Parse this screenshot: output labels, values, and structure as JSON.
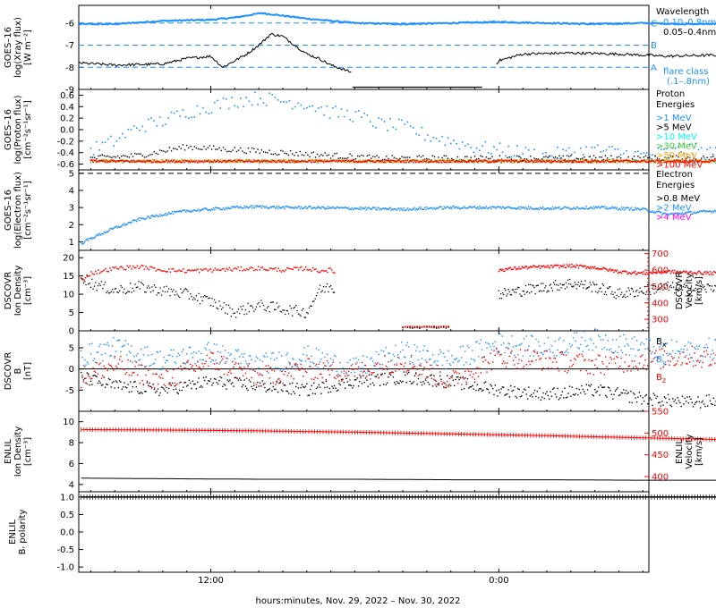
{
  "x_axis": {
    "range_hours": [
      6.5,
      30.25
    ],
    "ticks": [
      {
        "hour": 12,
        "label": "12:00"
      },
      {
        "hour": 24,
        "label": "0:00"
      },
      {
        "hour": 36,
        "label": "12:00"
      }
    ],
    "title": "hours:minutes, Nov. 29, 2022 – Nov. 30, 2022"
  },
  "colors": {
    "xray_long": "#1e90ff",
    "xray_short": "#000000",
    "proton_1": "#1e90ff",
    "proton_5": "#000000",
    "proton_10": "#00ffff",
    "proton_30": "#32cd32",
    "proton_50": "#ffa500",
    "proton_100": "#ff0000",
    "electron_08": "#000000",
    "electron_2": "#1e90ff",
    "electron_4": "#ff00ff",
    "density": "#000000",
    "velocity": "#ff0000",
    "bx": "#000000",
    "by": "#1e90ff",
    "bz": "#ff0000"
  },
  "panels": [
    {
      "id": "xray",
      "ylabel": [
        "GOES–16",
        "log(Xray flux)",
        "[W m⁻²]"
      ],
      "ylim": [
        -9,
        -5.2
      ],
      "yticks": [
        -9,
        -8,
        -7,
        -6
      ],
      "legend_title": "Wavelength",
      "legend": [
        {
          "text": "0.10–0.8nm",
          "color": "#1e90ff"
        },
        {
          "text": "0.05–0.4nm",
          "color": "#000000"
        }
      ],
      "flare_levels": [
        {
          "value": -6,
          "label": "C"
        },
        {
          "value": -7,
          "label": "B"
        },
        {
          "value": -8,
          "label": "A"
        }
      ],
      "flare_caption": [
        "flare class",
        "(.1–.8nm)"
      ]
    },
    {
      "id": "proton",
      "ylabel": [
        "GOES–16",
        "log(Proton flux)",
        "[cm⁻²s⁻¹sr⁻¹]"
      ],
      "ylim": [
        -0.7,
        0.7
      ],
      "yticks": [
        -0.6,
        -0.4,
        -0.2,
        0.0,
        0.2,
        0.4,
        0.6
      ],
      "ytick_labels": [
        "-0.6",
        "-0.4",
        "-0.2",
        "0.0",
        "0.2",
        "0.4",
        "0.6"
      ],
      "legend_title": [
        "Proton",
        "Energies"
      ],
      "legend": [
        {
          "text": ">1 MeV",
          "color": "#1e90ff"
        },
        {
          "text": ">5 MeV",
          "color": "#000000"
        },
        {
          "text": ">10 MeV",
          "color": "#00ffff"
        },
        {
          "text": ">30 MeV",
          "color": "#32cd32"
        },
        {
          "text": ">50 MeV",
          "color": "#ffa500"
        },
        {
          "text": ">100 MeV",
          "color": "#ff0000"
        }
      ]
    },
    {
      "id": "electron",
      "ylabel": [
        "GOES–16",
        "log(Electron flux)",
        "[cm⁻²s⁻¹sr⁻¹]"
      ],
      "ylim": [
        0.5,
        5.2
      ],
      "yticks": [
        1,
        2,
        3,
        4,
        5
      ],
      "threshold": 5,
      "legend_title": [
        "Electron",
        "Energies"
      ],
      "legend": [
        {
          "text": ">0.8 MeV",
          "color": "#000000"
        },
        {
          "text": ">2 MeV",
          "color": "#1e90ff"
        },
        {
          "text": ">4 MeV",
          "color": "#ff00ff"
        }
      ]
    },
    {
      "id": "dscovr_plasma",
      "ylabel": [
        "DSCOVR",
        "Ion Density",
        "[cm⁻³]"
      ],
      "ylim": [
        0,
        22
      ],
      "yticks": [
        0,
        5,
        10,
        15,
        20
      ],
      "right_label": [
        "DSCOVR",
        "Velocity",
        "[km/s]"
      ],
      "right_ylim": [
        230,
        720
      ],
      "right_yticks": [
        300,
        400,
        500,
        600,
        700
      ]
    },
    {
      "id": "dscovr_mag",
      "ylabel": [
        "DSCOVR",
        "B",
        "[nT]"
      ],
      "ylim": [
        -10,
        9
      ],
      "yticks": [
        -5,
        0,
        5
      ],
      "zero_line": 0,
      "legend": [
        {
          "base": "B",
          "sub": "x",
          "color": "#000000"
        },
        {
          "base": "B",
          "sub": "y",
          "color": "#1e90ff"
        },
        {
          "base": "B",
          "sub": "z",
          "color": "#ff0000"
        }
      ]
    },
    {
      "id": "enlil_plasma",
      "ylabel": [
        "ENLIL",
        "Ion Density",
        "[cm⁻³]"
      ],
      "ylim": [
        3.3,
        11
      ],
      "yticks": [
        4,
        6,
        8,
        10
      ],
      "right_label": [
        "ENLIL",
        "Velocity",
        "[km/s]"
      ],
      "right_ylim": [
        365,
        550
      ],
      "right_yticks": [
        400,
        450,
        500,
        550
      ]
    },
    {
      "id": "enlil_polarity",
      "ylabel": [
        "ENLIL",
        "Bᵣ polarity"
      ],
      "ylim": [
        -1.15,
        1.15
      ],
      "yticks": [
        -1.0,
        -0.5,
        0.0,
        0.5,
        1.0
      ],
      "ytick_labels": [
        "-1.0",
        "-0.5",
        "0.0",
        "0.5",
        "1.0"
      ]
    }
  ],
  "chart_data": [
    {
      "type": "line",
      "panel": "xray",
      "series": [
        {
          "name": "0.10–0.8nm",
          "x": [
            6.5,
            8,
            10,
            12,
            13,
            14.1,
            14.5,
            16,
            18,
            20,
            22,
            24,
            26,
            28,
            30,
            32,
            34,
            35.2,
            36.5
          ],
          "y": [
            -6.05,
            -6.05,
            -5.9,
            -5.85,
            -5.75,
            -5.55,
            -5.6,
            -5.8,
            -6.0,
            -6.05,
            -6.0,
            -5.95,
            -6.0,
            -6.05,
            -6.0,
            -6.05,
            -6.0,
            -6.0,
            -6.0
          ]
        },
        {
          "name": "0.05–0.4nm",
          "x": [
            6.5,
            8,
            10,
            11,
            12,
            12.5,
            13.5,
            14,
            14.5,
            15,
            15.5,
            16,
            16.5,
            17,
            17.8,
            20,
            22,
            23,
            24,
            25,
            27,
            29,
            31,
            33,
            34,
            35,
            36,
            36.5
          ],
          "y": [
            -7.8,
            -7.9,
            -7.85,
            -7.6,
            -7.5,
            -8.0,
            -7.4,
            -7.0,
            -6.5,
            -6.6,
            -7.0,
            -7.4,
            -7.6,
            -7.9,
            -8.2,
            -8.9,
            -8.9,
            -8.9,
            -7.7,
            -7.4,
            -7.35,
            -7.4,
            -7.5,
            -7.45,
            -7.7,
            -7.5,
            -7.6,
            -7.6
          ]
        }
      ]
    },
    {
      "type": "scatter",
      "panel": "proton",
      "series": [
        {
          "name": ">1 MeV",
          "x": [
            7,
            8,
            9,
            10,
            11,
            12,
            13,
            14,
            15,
            16,
            17,
            18,
            19,
            20,
            21,
            22,
            23,
            24,
            25,
            26,
            27,
            28,
            29,
            30,
            31,
            32,
            33,
            34,
            35,
            36
          ],
          "y": [
            -0.35,
            -0.2,
            0.05,
            0.15,
            0.3,
            0.4,
            0.5,
            0.55,
            0.5,
            0.45,
            0.3,
            0.25,
            0.1,
            0.05,
            -0.1,
            -0.2,
            -0.3,
            -0.35,
            -0.4,
            -0.45,
            -0.4,
            -0.35,
            -0.4,
            -0.45,
            -0.4,
            -0.35,
            -0.4,
            -0.45,
            -0.3,
            -0.35
          ]
        },
        {
          "name": ">5 MeV",
          "x": [
            7,
            9,
            11,
            13,
            15,
            17,
            19,
            21,
            23,
            25,
            27,
            29,
            31,
            33,
            35,
            36
          ],
          "y": [
            -0.5,
            -0.45,
            -0.3,
            -0.35,
            -0.4,
            -0.45,
            -0.5,
            -0.5,
            -0.5,
            -0.5,
            -0.5,
            -0.5,
            -0.5,
            -0.5,
            -0.5,
            -0.5
          ]
        },
        {
          "name": ">100 MeV",
          "x": [
            7,
            9,
            11,
            13,
            15,
            17,
            19,
            21,
            23,
            25,
            27,
            29,
            31,
            33,
            35,
            36
          ],
          "y": [
            -0.55,
            -0.55,
            -0.55,
            -0.55,
            -0.55,
            -0.55,
            -0.55,
            -0.55,
            -0.55,
            -0.55,
            -0.55,
            -0.55,
            -0.55,
            -0.55,
            -0.55,
            -0.55
          ]
        }
      ]
    },
    {
      "type": "line",
      "panel": "electron",
      "series": [
        {
          "name": ">2 MeV",
          "x": [
            6.6,
            7,
            8,
            9,
            10,
            11,
            12,
            13,
            14,
            15,
            16,
            18,
            20,
            22,
            24,
            26,
            28,
            30,
            31,
            32,
            33,
            34,
            35,
            36
          ],
          "y": [
            0.9,
            1.2,
            1.8,
            2.3,
            2.6,
            2.8,
            2.9,
            3.0,
            3.05,
            3.0,
            3.0,
            2.95,
            2.9,
            3.0,
            3.0,
            2.95,
            3.0,
            2.9,
            2.6,
            2.7,
            2.8,
            3.0,
            3.1,
            3.15
          ]
        }
      ]
    },
    {
      "type": "scatter",
      "panel": "dscovr_plasma",
      "series": [
        {
          "name": "Ion Density",
          "x": [
            6.6,
            7,
            8,
            9,
            10,
            11,
            12,
            13,
            14,
            15,
            16,
            16.5,
            17,
            20,
            21,
            22,
            24,
            25,
            26,
            27,
            28,
            29,
            30,
            31,
            32,
            33,
            34,
            35,
            36
          ],
          "y": [
            15,
            13,
            11,
            12,
            11,
            10,
            8,
            5,
            7,
            6,
            5,
            11,
            12,
            1,
            1,
            1,
            10,
            11,
            12,
            13,
            12,
            10,
            11,
            12,
            11,
            12,
            11,
            12,
            12
          ]
        },
        {
          "name": "Velocity",
          "x": [
            6.6,
            7,
            8,
            9,
            10,
            11,
            12,
            13,
            14,
            15,
            16,
            16.5,
            17,
            20,
            21,
            22,
            24,
            25,
            26,
            27,
            28,
            29,
            30,
            31,
            32,
            33,
            34,
            35,
            36
          ],
          "y": [
            540,
            580,
            610,
            620,
            600,
            595,
            600,
            605,
            610,
            600,
            610,
            595,
            600,
            255,
            255,
            255,
            600,
            615,
            620,
            625,
            615,
            590,
            580,
            590,
            585,
            580,
            580,
            585,
            580
          ]
        }
      ]
    },
    {
      "type": "scatter",
      "panel": "dscovr_mag",
      "series": [
        {
          "name": "Bx",
          "x": [
            6.6,
            8,
            10,
            12,
            14,
            16,
            18,
            20,
            22,
            24,
            26,
            28,
            30,
            32,
            34,
            36
          ],
          "y": [
            -2,
            -4,
            -5,
            -3,
            -4,
            -5,
            -3,
            -2,
            -3,
            -5,
            -6,
            -5,
            -7,
            -8,
            -7,
            -8
          ]
        },
        {
          "name": "By",
          "x": [
            6.6,
            8,
            10,
            12,
            14,
            16,
            18,
            20,
            22,
            24,
            26,
            28,
            30,
            32,
            34,
            36
          ],
          "y": [
            3,
            5,
            2,
            4,
            1,
            3,
            0,
            4,
            2,
            6,
            5,
            7,
            5,
            4,
            6,
            5
          ]
        },
        {
          "name": "Bz",
          "x": [
            6.6,
            8,
            10,
            12,
            14,
            16,
            18,
            20,
            22,
            24,
            26,
            28,
            30,
            32,
            34,
            36
          ],
          "y": [
            -2,
            1,
            -3,
            2,
            -2,
            0,
            -1,
            2,
            -3,
            3,
            2,
            1,
            2,
            3,
            1,
            2
          ]
        }
      ]
    },
    {
      "type": "line",
      "panel": "enlil_plasma",
      "series": [
        {
          "name": "Ion Density",
          "x": [
            6.6,
            10,
            14,
            18,
            22,
            26,
            30,
            34,
            38,
            41.5
          ],
          "y": [
            4.6,
            4.55,
            4.5,
            4.5,
            4.45,
            4.45,
            4.4,
            4.4,
            4.35,
            4.35
          ]
        },
        {
          "name": "Velocity",
          "x": [
            6.6,
            10,
            14,
            18,
            22,
            26,
            30,
            34,
            38,
            41.5
          ],
          "y": [
            508,
            507,
            505,
            502,
            498,
            494,
            489,
            484,
            479,
            473
          ]
        }
      ]
    },
    {
      "type": "line",
      "panel": "enlil_polarity",
      "series": [
        {
          "name": "Br polarity",
          "x": [
            6.6,
            41.5
          ],
          "y": [
            1.0,
            1.0
          ]
        }
      ]
    }
  ]
}
